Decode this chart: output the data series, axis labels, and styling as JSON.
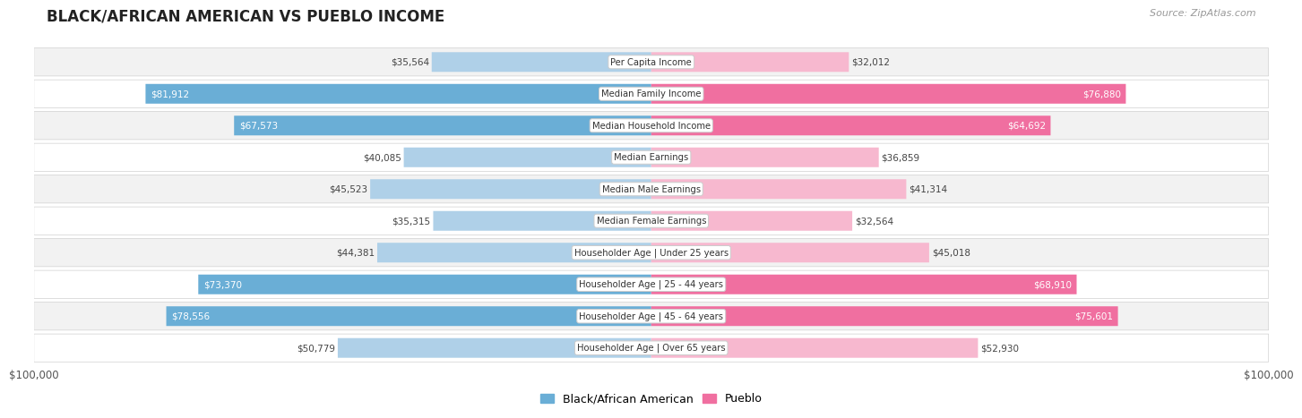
{
  "title": "BLACK/AFRICAN AMERICAN VS PUEBLO INCOME",
  "source": "Source: ZipAtlas.com",
  "categories": [
    "Per Capita Income",
    "Median Family Income",
    "Median Household Income",
    "Median Earnings",
    "Median Male Earnings",
    "Median Female Earnings",
    "Householder Age | Under 25 years",
    "Householder Age | 25 - 44 years",
    "Householder Age | 45 - 64 years",
    "Householder Age | Over 65 years"
  ],
  "left_values": [
    35564,
    81912,
    67573,
    40085,
    45523,
    35315,
    44381,
    73370,
    78556,
    50779
  ],
  "right_values": [
    32012,
    76880,
    64692,
    36859,
    41314,
    32564,
    45018,
    68910,
    75601,
    52930
  ],
  "left_labels": [
    "$35,564",
    "$81,912",
    "$67,573",
    "$40,085",
    "$45,523",
    "$35,315",
    "$44,381",
    "$73,370",
    "$78,556",
    "$50,779"
  ],
  "right_labels": [
    "$32,012",
    "$76,880",
    "$64,692",
    "$36,859",
    "$41,314",
    "$32,564",
    "$45,018",
    "$68,910",
    "$75,601",
    "$52,930"
  ],
  "max_value": 100000,
  "left_color_solid": "#6aaed6",
  "left_color_light": "#afd0e8",
  "right_color_solid": "#f06fa0",
  "right_color_light": "#f7b8cf",
  "threshold": 60000,
  "bg_color": "#ffffff",
  "row_bg_even": "#f2f2f2",
  "row_bg_odd": "#ffffff",
  "legend_left": "Black/African American",
  "legend_right": "Pueblo",
  "xlabel_left": "$100,000",
  "xlabel_right": "$100,000"
}
